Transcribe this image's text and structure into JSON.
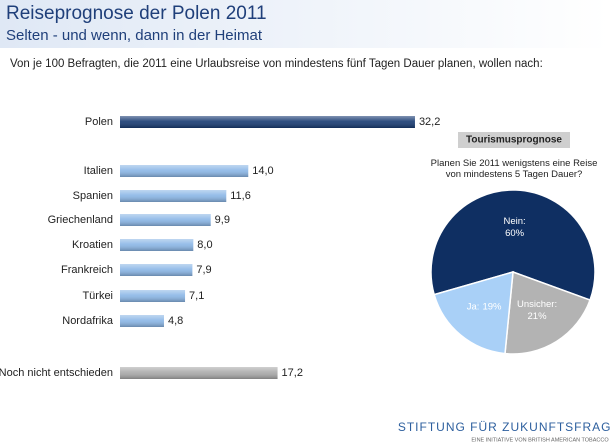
{
  "title": "Reiseprognose der Polen 2011",
  "subtitle": "Selten - und wenn, dann in der Heimat",
  "description": "Von je 100 Befragten, die 2011 eine Urlaubsreise von mindestens fünf Tagen Dauer planen, wollen nach:",
  "logo": {
    "name": "STIFTUNG FÜR ZUKUNFTSFRAGEN",
    "tagline": "EINE INITIATIVE VON BRITISH AMERICAN TOBACCO"
  },
  "chart_data": [
    {
      "type": "bar",
      "orientation": "horizontal",
      "categories": [
        "Polen",
        "Italien",
        "Spanien",
        "Griechenland",
        "Kroatien",
        "Frankreich",
        "Türkei",
        "Nordafrika",
        "Noch nicht entschieden"
      ],
      "values": [
        32.2,
        14.0,
        11.6,
        9.9,
        8.0,
        7.9,
        7.1,
        4.8,
        17.2
      ],
      "value_labels": [
        "32,2",
        "14,0",
        "11,6",
        "9,9",
        "8,0",
        "7,9",
        "7,1",
        "4,8",
        "17,2"
      ],
      "colors": [
        "#173a72",
        "#8ab6e6",
        "#8ab6e6",
        "#8ab6e6",
        "#8ab6e6",
        "#8ab6e6",
        "#8ab6e6",
        "#8ab6e6",
        "#a9a9a9"
      ]
    },
    {
      "type": "pie",
      "title": "Tourismusprognose",
      "subtitle": "Planen Sie 2011 wenigstens eine Reise von mindestens 5 Tagen Dauer?",
      "categories": [
        "Nein:",
        "Unsicher:",
        "Ja:"
      ],
      "values": [
        60,
        21,
        19
      ],
      "value_labels": [
        "60%",
        "21%",
        "19%"
      ],
      "colors": [
        "#0f2f62",
        "#b3b3b3",
        "#a9d0f7"
      ]
    }
  ]
}
